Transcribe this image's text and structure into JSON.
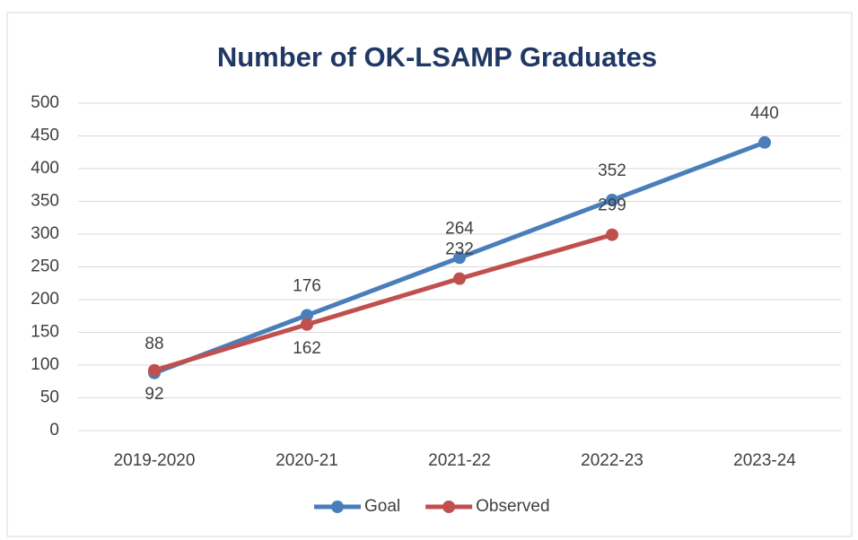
{
  "chart_data": {
    "type": "line",
    "title": "Number of OK-LSAMP Graduates",
    "categories": [
      "2019-2020",
      "2020-21",
      "2021-22",
      "2022-23",
      "2023-24"
    ],
    "series": [
      {
        "name": "Goal",
        "color": "#4a7ebb",
        "values": [
          88,
          176,
          264,
          352,
          440
        ]
      },
      {
        "name": "Observed",
        "color": "#c0504d",
        "values": [
          92,
          162,
          232,
          299,
          null
        ]
      }
    ],
    "ylim": [
      0,
      500
    ],
    "yticks": [
      0,
      50,
      100,
      150,
      200,
      250,
      300,
      350,
      400,
      450,
      500
    ],
    "grid": true,
    "legend": "bottom"
  }
}
